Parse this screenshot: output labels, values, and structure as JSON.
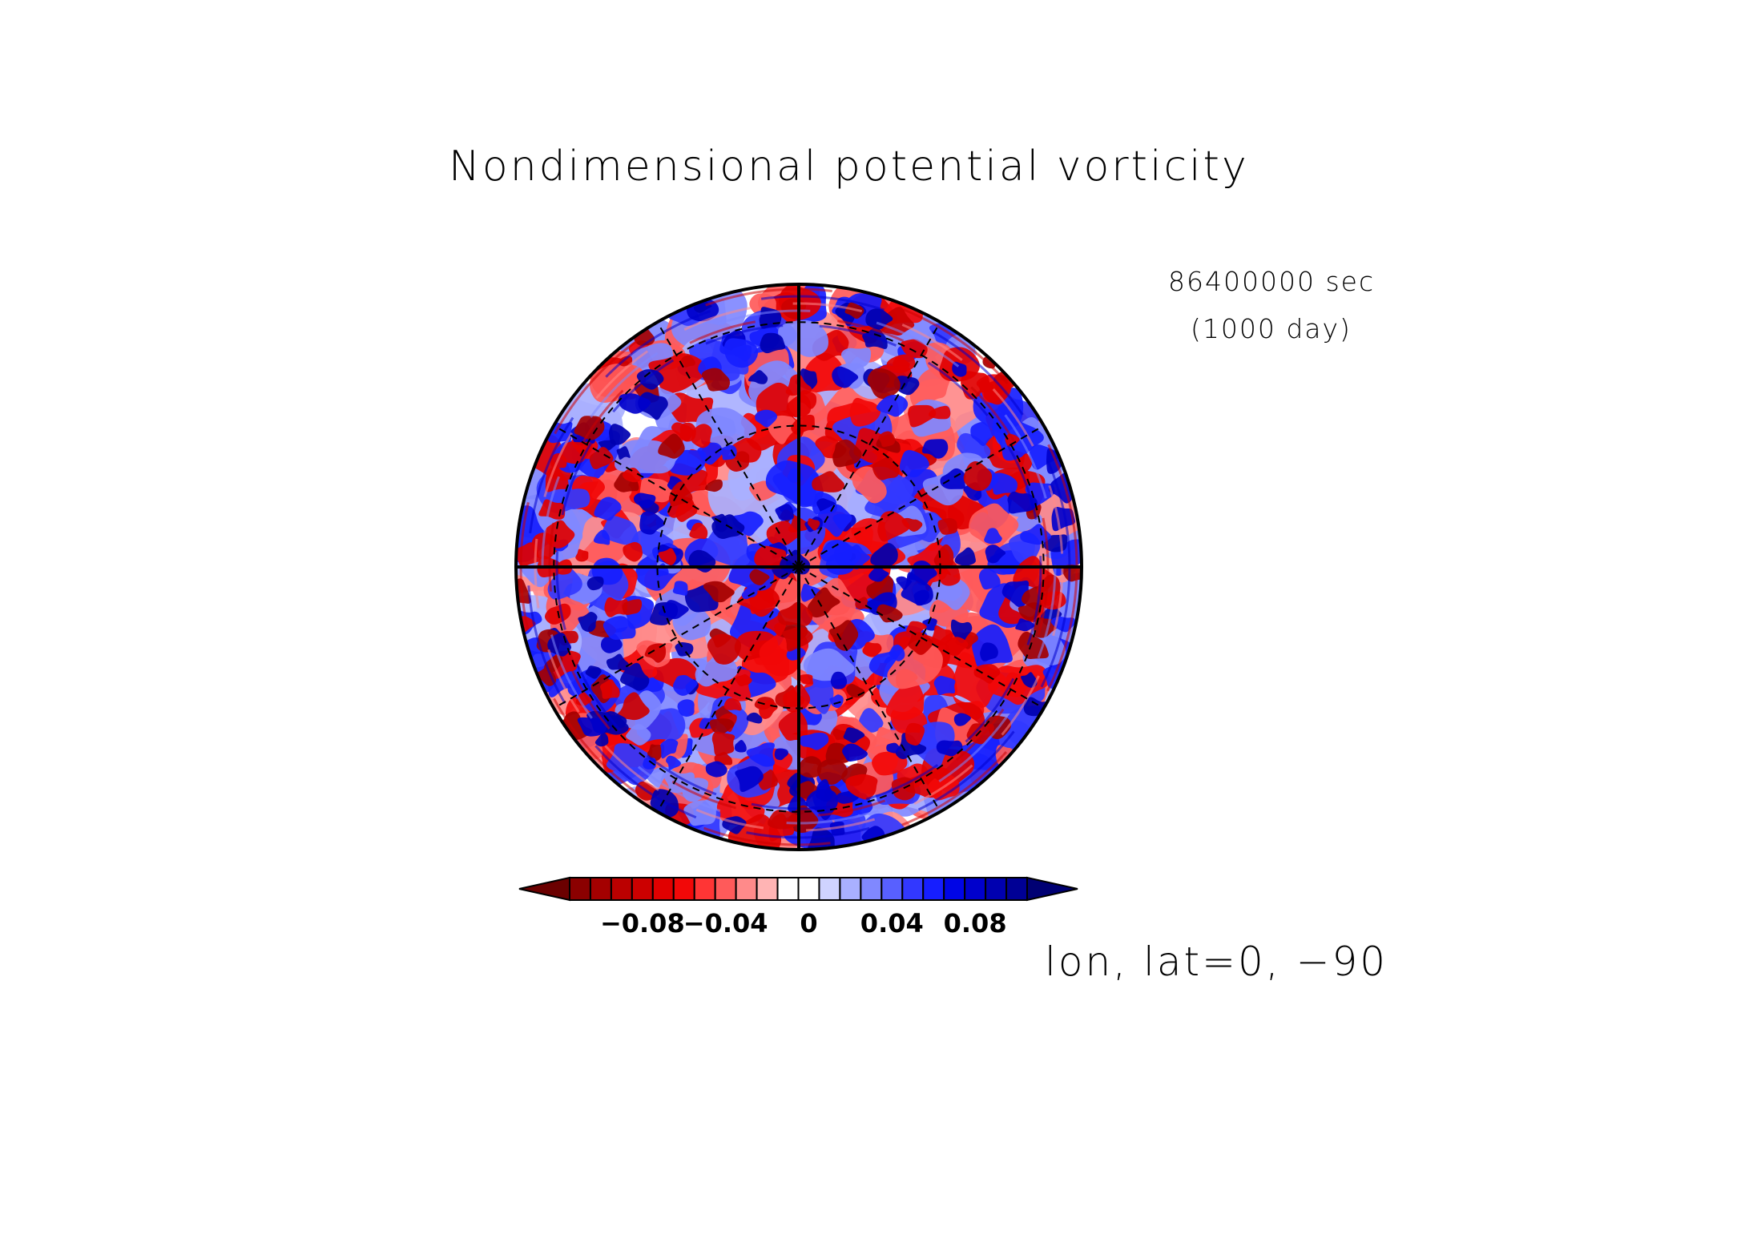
{
  "title": "Nondimensional potential vorticity",
  "time": {
    "seconds_label": "86400000 sec",
    "days_label": "(1000 day)"
  },
  "projection_label": "lon, lat=0, −90",
  "colorbar": {
    "levels": [
      -0.11,
      -0.1,
      -0.09,
      -0.08,
      -0.07,
      -0.06,
      -0.05,
      -0.04,
      -0.03,
      -0.02,
      -0.01,
      0,
      0.01,
      0.02,
      0.03,
      0.04,
      0.05,
      0.06,
      0.07,
      0.08,
      0.09,
      0.1,
      0.11
    ],
    "colors": [
      "#6b0000",
      "#8b0000",
      "#a40000",
      "#bb0000",
      "#cc0000",
      "#e10000",
      "#f20808",
      "#ff3535",
      "#ff5a5a",
      "#ff8a8a",
      "#ffb4b4",
      "#ffffff",
      "#ffffff",
      "#cfd3ff",
      "#a9b0ff",
      "#8088ff",
      "#5860ff",
      "#3238ff",
      "#161eff",
      "#0005e6",
      "#0000cc",
      "#0000b0",
      "#000095",
      "#000073"
    ],
    "tick_labels": [
      {
        "value": -0.08,
        "text": "−0.08"
      },
      {
        "value": -0.04,
        "text": "−0.04"
      },
      {
        "value": 0,
        "text": "0"
      },
      {
        "value": 0.04,
        "text": "0.04"
      },
      {
        "value": 0.08,
        "text": "0.08"
      }
    ]
  },
  "map": {
    "type": "polar-stereographic",
    "pole": "south",
    "graticule_meridians_deg": [
      0,
      30,
      60,
      90,
      120,
      150,
      180,
      210,
      240,
      270,
      300,
      330
    ],
    "solid_meridians_deg": [
      0,
      90,
      180,
      270
    ],
    "graticule_latitudes_deg": [
      -60,
      -30
    ],
    "field_colors": {
      "positive": "#0000cc",
      "negative": "#cc0000",
      "neutral": "#ffffff"
    }
  }
}
